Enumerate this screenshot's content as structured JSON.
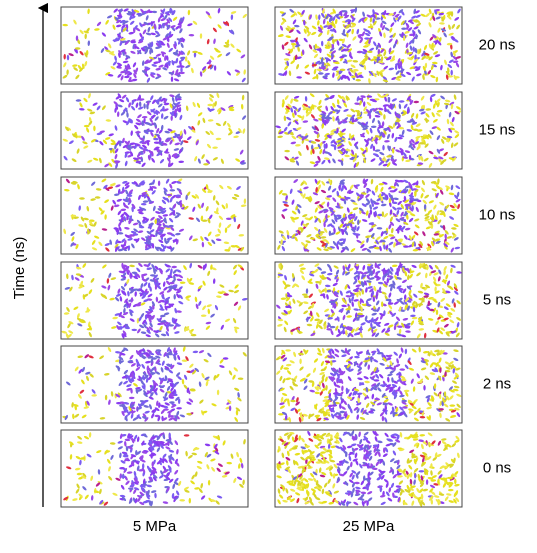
{
  "axis_label": "Time (ns)",
  "rows": [
    "20 ns",
    "15 ns",
    "10 ns",
    "5 ns",
    "2 ns",
    "0 ns"
  ],
  "columns": [
    "5 MPa",
    "25 MPa"
  ]
}
